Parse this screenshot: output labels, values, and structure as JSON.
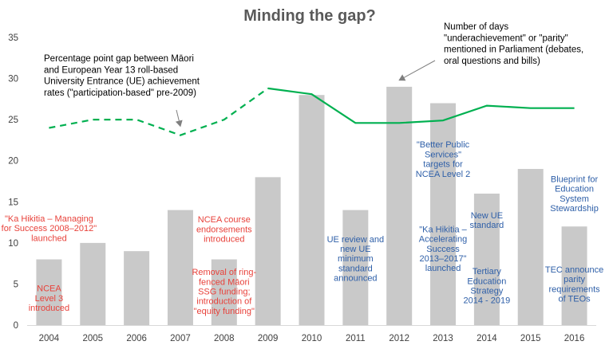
{
  "chart_data": {
    "type": "bar",
    "title": "Minding the gap?",
    "xlabel": "",
    "ylabel": "",
    "ylim": [
      0,
      35
    ],
    "yticks": [
      0,
      5,
      10,
      15,
      20,
      25,
      30,
      35
    ],
    "grid": false,
    "categories": [
      "2004",
      "2005",
      "2006",
      "2007",
      "2008",
      "2009",
      "2010",
      "2011",
      "2012",
      "2013",
      "2014",
      "2015",
      "2016"
    ],
    "series": [
      {
        "kind": "bar",
        "color": "#c9c9c9",
        "values": [
          8,
          10,
          9,
          14,
          8,
          18,
          28,
          14,
          29,
          27,
          16,
          19,
          12
        ]
      },
      {
        "kind": "line",
        "color": "#00b050",
        "values": [
          24,
          25,
          25,
          23.1,
          25,
          28.8,
          28.1,
          24.6,
          24.6,
          24.9,
          26.7,
          26.4,
          26.4
        ],
        "dashed_until_index": 5
      }
    ],
    "notes": [
      {
        "lines": [
          "Percentage point gap between Māori",
          "and European Year 13 roll-based",
          "University Entrance (UE) achievement",
          "rates (\"participation-based\" pre-2009)"
        ],
        "arrow_to": {
          "x": "2007",
          "y": 24.2
        }
      },
      {
        "lines": [
          "Number of days",
          "\"underachievement\" or \"parity\"",
          "mentioned in Parliament (debates,",
          "oral questions and bills)"
        ],
        "arrow_to": {
          "x": "2012",
          "y": 29.8
        }
      }
    ],
    "annotations": [
      {
        "x": "2004",
        "y": 12.6,
        "color": "#e8423b",
        "lines": [
          "\"Ka Hikitia – Managing",
          "for Success 2008–2012\"",
          "launched"
        ]
      },
      {
        "x": "2004",
        "y": 4.1,
        "color": "#e8423b",
        "lines": [
          "NCEA",
          "Level 3",
          "introduced"
        ]
      },
      {
        "x": "2008",
        "y": 12.5,
        "color": "#e8423b",
        "lines": [
          "NCEA course",
          "endorsements",
          "introduced"
        ]
      },
      {
        "x": "2008",
        "y": 6.1,
        "color": "#e8423b",
        "lines": [
          "Removal of ring-",
          "fenced Māori",
          "SSG funding;",
          "introduction of",
          "\"equity funding\""
        ]
      },
      {
        "x": "2011",
        "y": 10.1,
        "color": "#2e5fa8",
        "lines": [
          "UE review and",
          "new UE",
          "minimum",
          "standard",
          "announced"
        ]
      },
      {
        "x": "2013",
        "y": 21.6,
        "color": "#2e5fa8",
        "lines": [
          "\"Better Public",
          "Services\"",
          "targets for",
          "NCEA Level 2"
        ]
      },
      {
        "x": "2013",
        "y": 11.3,
        "color": "#2e5fa8",
        "lines": [
          "\"Ka Hikitia –",
          "Accelerating",
          "Success",
          "2013–2017\"",
          "launched"
        ]
      },
      {
        "x": "2014",
        "y": 13,
        "color": "#2e5fa8",
        "lines": [
          "New UE",
          "standard"
        ]
      },
      {
        "x": "2014",
        "y": 6.2,
        "color": "#2e5fa8",
        "lines": [
          "Tertiary",
          "Education",
          "Strategy",
          "2014 - 2019"
        ]
      },
      {
        "x": "2016",
        "y": 17.4,
        "color": "#2e5fa8",
        "lines": [
          "Blueprint for",
          "Education",
          "System",
          "Stewardship"
        ]
      },
      {
        "x": "2016",
        "y": 6.4,
        "color": "#2e5fa8",
        "lines": [
          "TEC announce",
          "parity",
          "requirements",
          "of TEOs"
        ]
      }
    ]
  }
}
